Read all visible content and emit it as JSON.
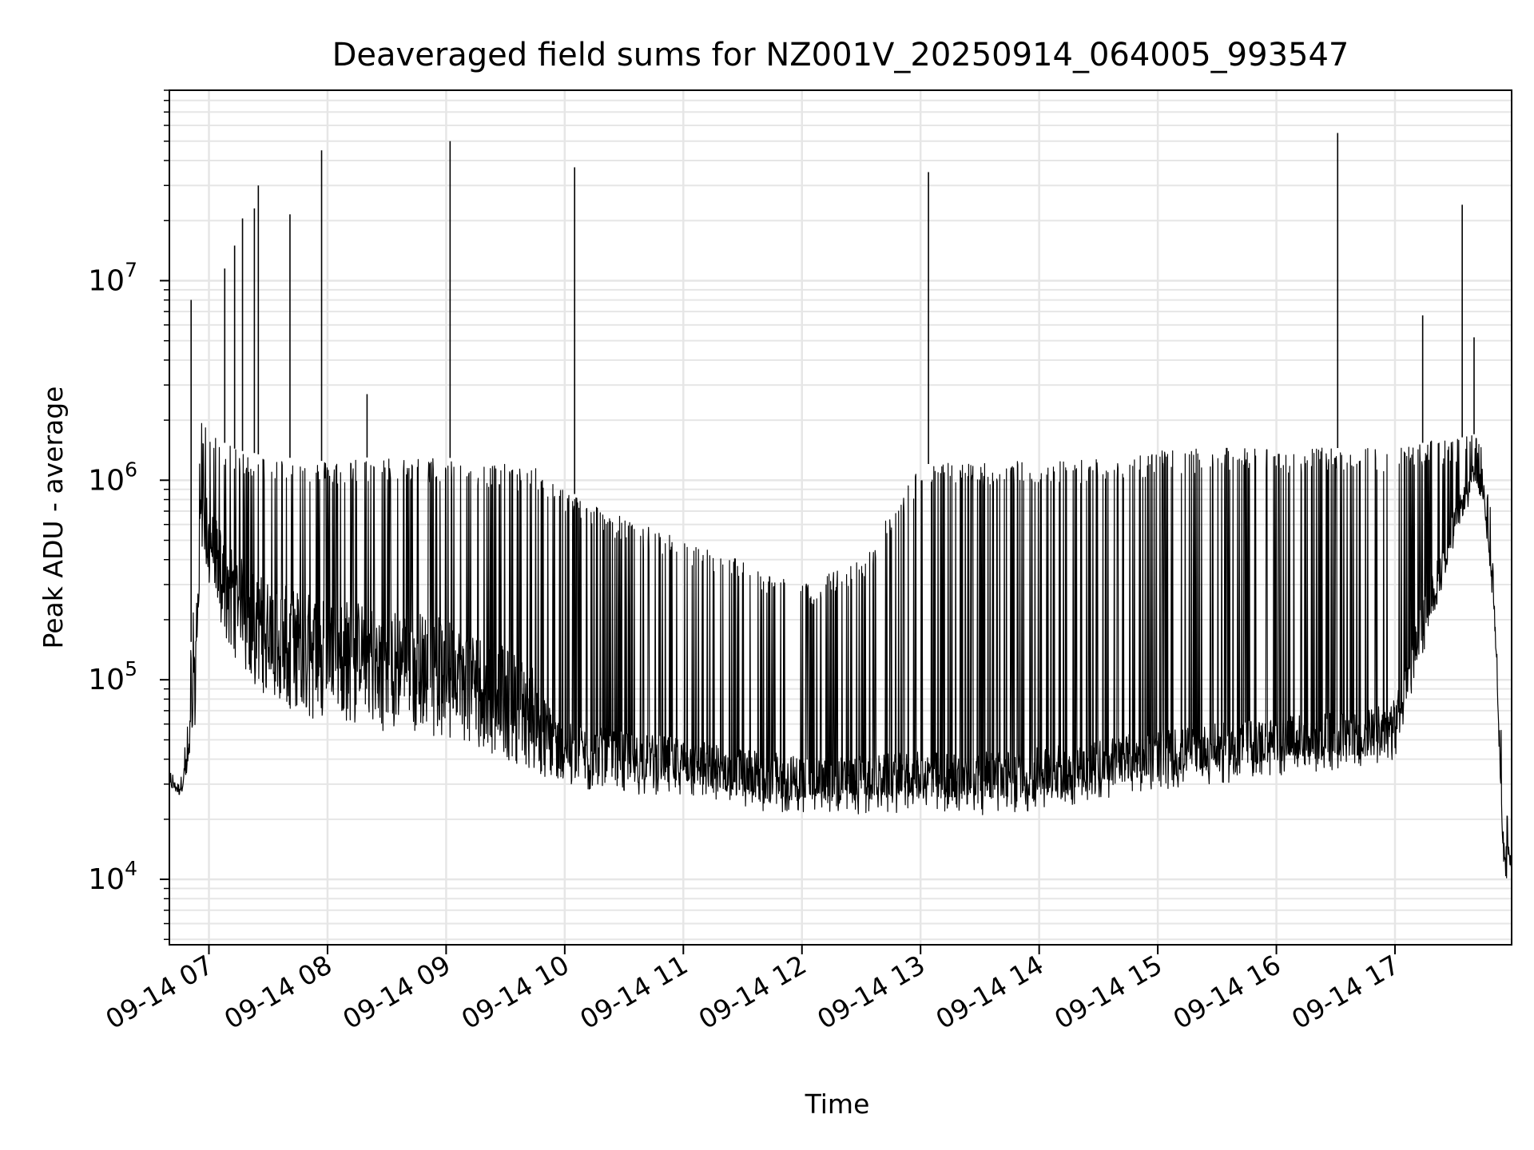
{
  "chart_data": {
    "type": "line",
    "title": "Deaveraged field sums for NZ001V_20250914_064005_993547",
    "xlabel": "Time",
    "ylabel": "Peak ADU - average",
    "x_type": "datetime",
    "x_range": [
      "2025-09-14T06:40:00",
      "2025-09-14T17:59:00"
    ],
    "y_scale": "log",
    "ylim": [
      4700,
      90000000
    ],
    "grid": true,
    "line_color": "#000000",
    "grid_color": "#e6e6e6",
    "x_ticks": [
      {
        "t": "2025-09-14T07:00",
        "label": "09-14 07"
      },
      {
        "t": "2025-09-14T08:00",
        "label": "09-14 08"
      },
      {
        "t": "2025-09-14T09:00",
        "label": "09-14 09"
      },
      {
        "t": "2025-09-14T10:00",
        "label": "09-14 10"
      },
      {
        "t": "2025-09-14T11:00",
        "label": "09-14 11"
      },
      {
        "t": "2025-09-14T12:00",
        "label": "09-14 12"
      },
      {
        "t": "2025-09-14T13:00",
        "label": "09-14 13"
      },
      {
        "t": "2025-09-14T14:00",
        "label": "09-14 14"
      },
      {
        "t": "2025-09-14T15:00",
        "label": "09-14 15"
      },
      {
        "t": "2025-09-14T16:00",
        "label": "09-14 16"
      },
      {
        "t": "2025-09-14T17:00",
        "label": "09-14 17"
      }
    ],
    "y_ticks": [
      {
        "value": 10000,
        "base": "10",
        "exp": "4"
      },
      {
        "value": 100000,
        "base": "10",
        "exp": "5"
      },
      {
        "value": 1000000,
        "base": "10",
        "exp": "6"
      },
      {
        "value": 10000000,
        "base": "10",
        "exp": "7"
      }
    ],
    "series": [
      {
        "x": [
          "2025-09-14T06:40",
          "2025-09-14T06:45",
          "2025-09-14T06:49",
          "2025-09-14T06:53",
          "2025-09-14T06:56",
          "2025-09-14T07:00",
          "2025-09-14T07:05",
          "2025-09-14T07:10",
          "2025-09-14T07:15",
          "2025-09-14T07:20",
          "2025-09-14T07:30",
          "2025-09-14T07:40",
          "2025-09-14T07:50",
          "2025-09-14T08:00",
          "2025-09-14T08:15",
          "2025-09-14T08:30",
          "2025-09-14T08:45",
          "2025-09-14T09:00",
          "2025-09-14T09:15",
          "2025-09-14T09:30",
          "2025-09-14T09:45",
          "2025-09-14T09:50",
          "2025-09-14T10:00",
          "2025-09-14T10:30",
          "2025-09-14T11:00",
          "2025-09-14T11:30",
          "2025-09-14T12:00",
          "2025-09-14T12:30",
          "2025-09-14T13:00",
          "2025-09-14T13:30",
          "2025-09-14T14:00",
          "2025-09-14T14:30",
          "2025-09-14T15:00",
          "2025-09-14T15:30",
          "2025-09-14T16:00",
          "2025-09-14T16:30",
          "2025-09-14T16:50",
          "2025-09-14T17:00",
          "2025-09-14T17:10",
          "2025-09-14T17:20",
          "2025-09-14T17:30",
          "2025-09-14T17:40",
          "2025-09-14T17:45",
          "2025-09-14T17:50",
          "2025-09-14T17:55",
          "2025-09-14T17:59"
        ],
        "y": [
          31000,
          30000,
          40000,
          200000,
          1400000,
          1000000,
          900000,
          800000,
          700000,
          600000,
          550000,
          500000,
          480000,
          460000,
          420000,
          380000,
          350000,
          320000,
          260000,
          200000,
          150000,
          80000,
          50000,
          45000,
          42000,
          38000,
          34000,
          33000,
          32000,
          33000,
          35000,
          38000,
          42000,
          45000,
          48000,
          52000,
          55000,
          60000,
          150000,
          300000,
          600000,
          1100000,
          1000000,
          400000,
          18000,
          14000
        ],
        "low": [
          28000,
          25000,
          30000,
          60000,
          500000,
          300000,
          200000,
          150000,
          120000,
          100000,
          80000,
          70000,
          65000,
          60000,
          60000,
          55000,
          55000,
          50000,
          45000,
          40000,
          35000,
          30000,
          28000,
          27000,
          25000,
          22000,
          21000,
          21000,
          22000,
          21000,
          22000,
          25000,
          28000,
          30000,
          33000,
          35000,
          37000,
          40000,
          100000,
          200000,
          450000,
          900000,
          700000,
          200000,
          10000,
          10000
        ],
        "high": [
          35000,
          35000,
          60000,
          400000,
          2000000,
          1800000,
          1600000,
          1500000,
          1400000,
          1400000,
          1300000,
          1300000,
          1250000,
          1250000,
          1300000,
          1300000,
          1300000,
          1300000,
          1250000,
          1200000,
          1150000,
          1100000,
          900000,
          650000,
          500000,
          400000,
          300000,
          400000,
          1200000,
          1250000,
          1250000,
          1300000,
          1400000,
          1450000,
          1450000,
          1450000,
          1450000,
          1500000,
          1500000,
          1600000,
          1600000,
          1700000,
          1400000,
          600000,
          25000,
          18000
        ]
      }
    ],
    "spikes": [
      {
        "t": "2025-09-14T06:51",
        "value": 8000000
      },
      {
        "t": "2025-09-14T07:08",
        "value": 11500000
      },
      {
        "t": "2025-09-14T07:13",
        "value": 15000000
      },
      {
        "t": "2025-09-14T07:17",
        "value": 20500000
      },
      {
        "t": "2025-09-14T07:23",
        "value": 23000000
      },
      {
        "t": "2025-09-14T07:25",
        "value": 30000000
      },
      {
        "t": "2025-09-14T07:41",
        "value": 21500000
      },
      {
        "t": "2025-09-14T07:57",
        "value": 45000000
      },
      {
        "t": "2025-09-14T08:20",
        "value": 2700000
      },
      {
        "t": "2025-09-14T09:02",
        "value": 50000000
      },
      {
        "t": "2025-09-14T10:05",
        "value": 37000000
      },
      {
        "t": "2025-09-14T13:04",
        "value": 35000000
      },
      {
        "t": "2025-09-14T16:31",
        "value": 55000000
      },
      {
        "t": "2025-09-14T17:14",
        "value": 6700000
      },
      {
        "t": "2025-09-14T17:34",
        "value": 24000000
      },
      {
        "t": "2025-09-14T17:40",
        "value": 5200000
      }
    ]
  }
}
